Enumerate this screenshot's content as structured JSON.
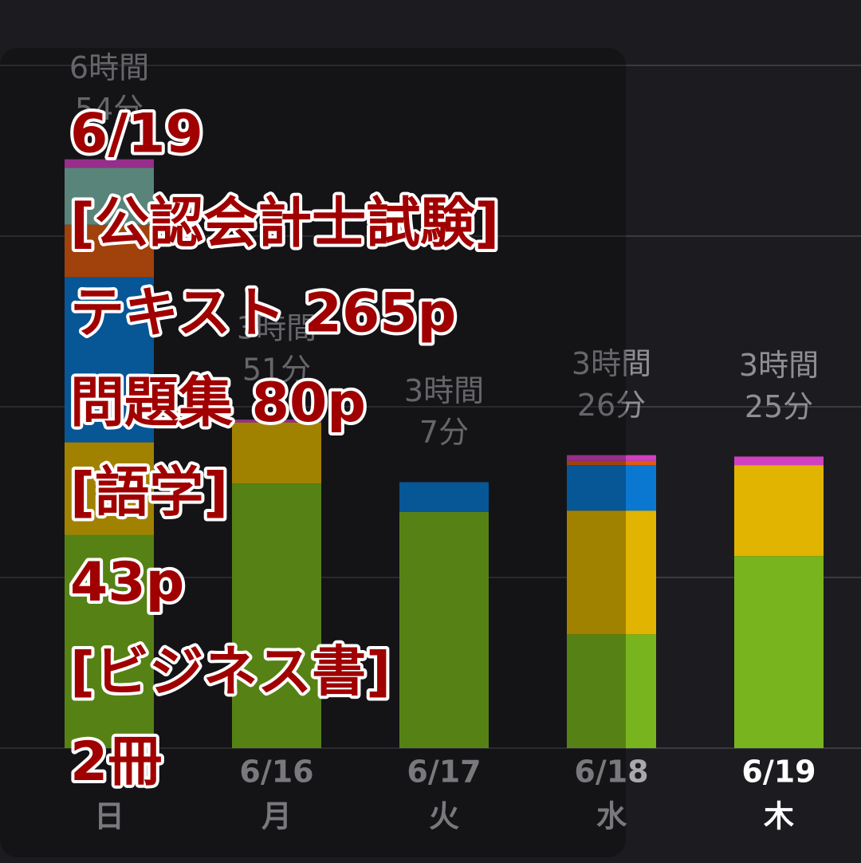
{
  "chart_data": {
    "type": "stacked-bar",
    "categories": [
      null,
      "6/16",
      "6/17",
      "6/18",
      "6/19"
    ],
    "weekdays": [
      "日",
      "月",
      "火",
      "水",
      "木"
    ],
    "total_labels": [
      [
        "6時間",
        "54分"
      ],
      [
        "3時間",
        "51分"
      ],
      [
        "3時間",
        "7分"
      ],
      [
        "3時間",
        "26分"
      ],
      [
        "3時間",
        "25分"
      ]
    ],
    "series": [
      {
        "color": "#78b41e",
        "values": [
          150,
          186,
          166,
          80,
          135
        ]
      },
      {
        "color": "#e0b400",
        "values": [
          65,
          43,
          0,
          87,
          64
        ]
      },
      {
        "color": "#0a78d0",
        "values": [
          116,
          0,
          21,
          32,
          0
        ]
      },
      {
        "color": "#e05a10",
        "values": [
          37,
          0,
          0,
          3,
          0
        ]
      },
      {
        "color": "#7ab8a8",
        "values": [
          40,
          0,
          0,
          0,
          0
        ]
      },
      {
        "color": "#d040c0",
        "values": [
          6,
          2,
          0,
          4,
          6
        ]
      }
    ],
    "ylim": [
      0,
      480
    ],
    "yticks": [
      0,
      120,
      240,
      360,
      480
    ],
    "grid": true,
    "overlay": [
      "6/19",
      "[公認会計士試験]",
      "テキスト 265p",
      "問題集 80p",
      "[語学]",
      "43p",
      "[ビジネス書]",
      "2冊"
    ]
  }
}
